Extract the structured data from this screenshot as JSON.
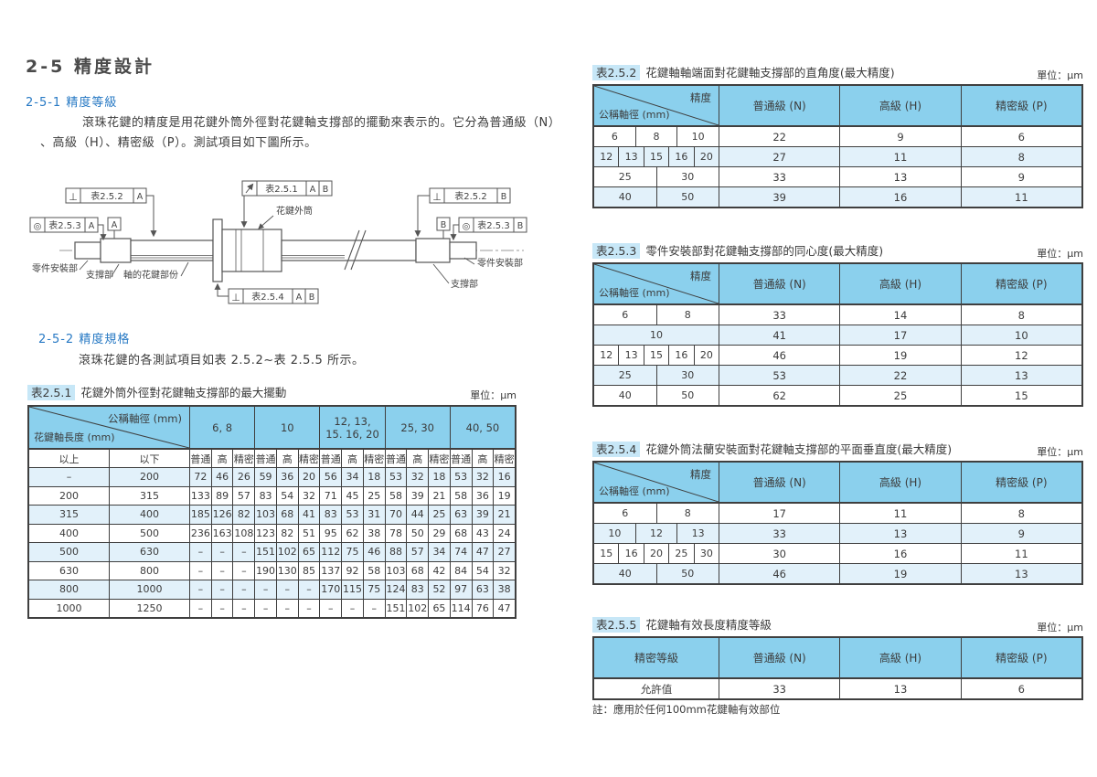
{
  "page": {
    "title": "2-5 精度設計",
    "sec1_no": "2-5-1",
    "sec1_name": "精度等級",
    "para1_line1": "滾珠花鍵的精度是用花鍵外筒外徑對花鍵軸支撐部的擺動來表示的。它分為普通級（N）",
    "para1_line2": "、高級（H）、精密級（P）。測試項目如下圖所示。",
    "sec2_no": "2-5-2",
    "sec2_name": "精度規格",
    "para2": "滾珠花鍵的各測試項目如表 2.5.2~表 2.5.5 所示。"
  },
  "unit_label": "單位：μm",
  "diagram": {
    "fcf_perp_a": {
      "symbol": "⊥",
      "table": "表2.5.2",
      "d1": "A"
    },
    "fcf_conc_a": {
      "symbol": "◎",
      "table": "表2.5.3",
      "d1": "A"
    },
    "fcf_runout": {
      "table": "表2.5.1",
      "d1": "A",
      "d2": "B"
    },
    "fcf_perp_b": {
      "symbol": "⊥",
      "table": "表2.5.2",
      "d1": "B"
    },
    "fcf_conc_b": {
      "symbol": "◎",
      "table": "表2.5.3",
      "d1": "B"
    },
    "fcf_flat": {
      "symbol": "⊥",
      "table": "表2.5.4",
      "d1": "A",
      "d2": "B"
    },
    "datum_a": "A",
    "datum_b": "B",
    "labels": {
      "mount_left": "零件安裝部",
      "support_left": "支撐部",
      "spline_part": "軸的花鍵部份",
      "outer_cylinder": "花鍵外筒",
      "mount_right": "零件安裝部",
      "support_right": "支撐部"
    }
  },
  "table251": {
    "id": "表2.5.1",
    "title": "花鍵外筒外徑對花鍵軸支撐部的最大擺動",
    "diag_top": "公稱軸徑 (mm)",
    "diag_bottom": "花鍵軸長度 (mm)",
    "groups": [
      "6, 8",
      "10",
      "12, 13,\n15. 16, 20",
      "25, 30",
      "40, 50"
    ],
    "range_heads": [
      "以上",
      "以下"
    ],
    "grade_heads": [
      "普通",
      "高",
      "精密"
    ],
    "rows": [
      [
        "–",
        "200",
        "72",
        "46",
        "26",
        "59",
        "36",
        "20",
        "56",
        "34",
        "18",
        "53",
        "32",
        "18",
        "53",
        "32",
        "16"
      ],
      [
        "200",
        "315",
        "133",
        "89",
        "57",
        "83",
        "54",
        "32",
        "71",
        "45",
        "25",
        "58",
        "39",
        "21",
        "58",
        "36",
        "19"
      ],
      [
        "315",
        "400",
        "185",
        "126",
        "82",
        "103",
        "68",
        "41",
        "83",
        "53",
        "31",
        "70",
        "44",
        "25",
        "63",
        "39",
        "21"
      ],
      [
        "400",
        "500",
        "236",
        "163",
        "108",
        "123",
        "82",
        "51",
        "95",
        "62",
        "38",
        "78",
        "50",
        "29",
        "68",
        "43",
        "24"
      ],
      [
        "500",
        "630",
        "–",
        "–",
        "–",
        "151",
        "102",
        "65",
        "112",
        "75",
        "46",
        "88",
        "57",
        "34",
        "74",
        "47",
        "27"
      ],
      [
        "630",
        "800",
        "–",
        "–",
        "–",
        "190",
        "130",
        "85",
        "137",
        "92",
        "58",
        "103",
        "68",
        "42",
        "84",
        "54",
        "32"
      ],
      [
        "800",
        "1000",
        "–",
        "–",
        "–",
        "–",
        "–",
        "–",
        "170",
        "115",
        "75",
        "124",
        "83",
        "52",
        "97",
        "63",
        "38"
      ],
      [
        "1000",
        "1250",
        "–",
        "–",
        "–",
        "–",
        "–",
        "–",
        "–",
        "–",
        "–",
        "151",
        "102",
        "65",
        "114",
        "76",
        "47"
      ]
    ]
  },
  "table252": {
    "id": "表2.5.2",
    "title": "花鍵軸軸端面對花鍵軸支撐部的直角度(最大精度)",
    "diag_top": "精度",
    "diag_bottom": "公稱軸徑 (mm)",
    "cols": [
      "普通級 (N)",
      "高級 (H)",
      "精密級 (P)"
    ],
    "rows": [
      {
        "dia": [
          "6",
          "8",
          "10"
        ],
        "vals": [
          "22",
          "9",
          "6"
        ]
      },
      {
        "dia": [
          "12",
          "13",
          "15",
          "16",
          "20"
        ],
        "vals": [
          "27",
          "11",
          "8"
        ]
      },
      {
        "dia": [
          "25",
          "30"
        ],
        "vals": [
          "33",
          "13",
          "9"
        ]
      },
      {
        "dia": [
          "40",
          "50"
        ],
        "vals": [
          "39",
          "16",
          "11"
        ]
      }
    ]
  },
  "table253": {
    "id": "表2.5.3",
    "title": "零件安裝部對花鍵軸支撐部的同心度(最大精度)",
    "diag_top": "精度",
    "diag_bottom": "公稱軸徑 (mm)",
    "cols": [
      "普通級 (N)",
      "高級 (H)",
      "精密級 (P)"
    ],
    "rows": [
      {
        "dia": [
          "6",
          "8"
        ],
        "vals": [
          "33",
          "14",
          "8"
        ]
      },
      {
        "dia": [
          "10"
        ],
        "vals": [
          "41",
          "17",
          "10"
        ]
      },
      {
        "dia": [
          "12",
          "13",
          "15",
          "16",
          "20"
        ],
        "vals": [
          "46",
          "19",
          "12"
        ]
      },
      {
        "dia": [
          "25",
          "30"
        ],
        "vals": [
          "53",
          "22",
          "13"
        ]
      },
      {
        "dia": [
          "40",
          "50"
        ],
        "vals": [
          "62",
          "25",
          "15"
        ]
      }
    ]
  },
  "table254": {
    "id": "表2.5.4",
    "title": "花鍵外筒法蘭安裝面對花鍵軸支撐部的平面垂直度(最大精度)",
    "diag_top": "精度",
    "diag_bottom": "公稱軸徑 (mm)",
    "cols": [
      "普通級 (N)",
      "高級 (H)",
      "精密級 (P)"
    ],
    "rows": [
      {
        "dia": [
          "6",
          "8"
        ],
        "vals": [
          "17",
          "11",
          "8"
        ]
      },
      {
        "dia": [
          "10",
          "12",
          "13"
        ],
        "vals": [
          "33",
          "13",
          "9"
        ]
      },
      {
        "dia": [
          "15",
          "16",
          "20",
          "25",
          "30"
        ],
        "vals": [
          "30",
          "16",
          "11"
        ]
      },
      {
        "dia": [
          "40",
          "50"
        ],
        "vals": [
          "46",
          "19",
          "13"
        ]
      }
    ]
  },
  "table255": {
    "id": "表2.5.5",
    "title": "花鍵軸有效長度精度等級",
    "col0": "精密等級",
    "cols": [
      "普通級 (N)",
      "高級 (H)",
      "精密級 (P)"
    ],
    "rows": [
      {
        "label": "允許值",
        "vals": [
          "33",
          "13",
          "6"
        ]
      }
    ],
    "note": "註：應用於任何100mm花鍵軸有效部位"
  }
}
